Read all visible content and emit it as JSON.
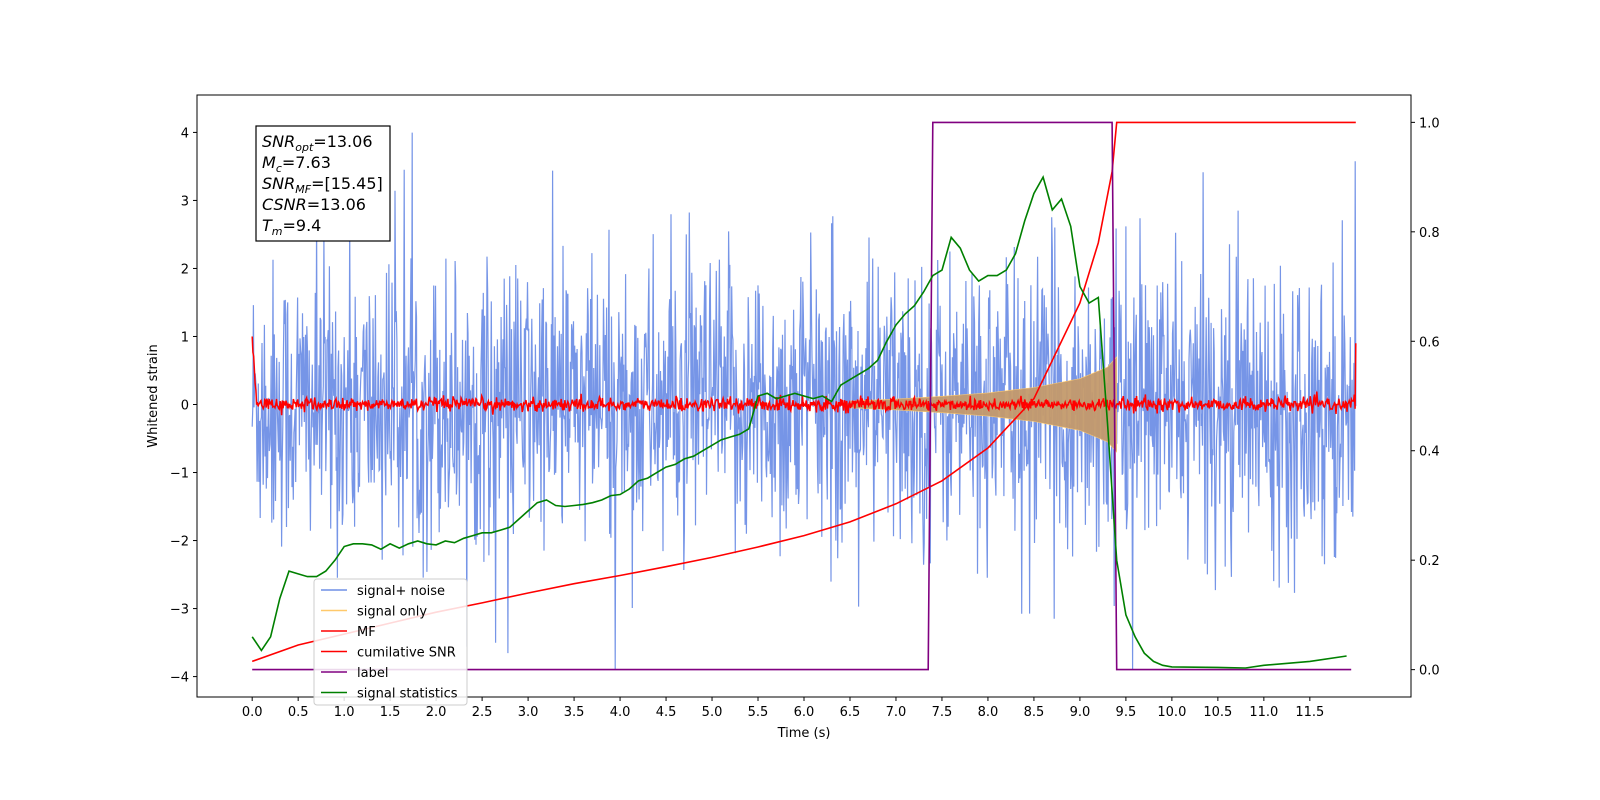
{
  "chart_data": {
    "type": "line",
    "title": "",
    "xlabel": "Time (s)",
    "ylabel": "Whitened strain",
    "xlim": [
      -0.6,
      12.6
    ],
    "ylim": [
      -4.3,
      4.55
    ],
    "ylim_right": [
      -0.05,
      1.05
    ],
    "grid": false,
    "legend_position": "lower-left",
    "x_ticks": [
      "0.0",
      "0.5",
      "1.0",
      "1.5",
      "2.0",
      "2.5",
      "3.0",
      "3.5",
      "4.0",
      "4.5",
      "5.0",
      "5.5",
      "6.0",
      "6.5",
      "7.0",
      "7.5",
      "8.0",
      "8.5",
      "9.0",
      "9.5",
      "10.0",
      "10.5",
      "11.0",
      "11.5"
    ],
    "y_ticks": [
      "4",
      "3",
      "2",
      "1",
      "0",
      "−1",
      "−2",
      "−3",
      "−4"
    ],
    "y_ticks_right": [
      "1.0",
      "0.8",
      "0.6",
      "0.4",
      "0.2",
      "0.0"
    ],
    "annotation": [
      {
        "base": "SNR",
        "sub": "opt",
        "value": "=13.06"
      },
      {
        "base": "M",
        "sub": "c",
        "value": "=7.63"
      },
      {
        "base": "SNR",
        "sub": "MF",
        "value": "=[15.45]"
      },
      {
        "base": "CSNR",
        "sub": "",
        "value": "=13.06"
      },
      {
        "base": "T",
        "sub": "m",
        "value": "=9.4"
      }
    ],
    "series": [
      {
        "name": "signal+ noise",
        "color": "#6f8fe6",
        "axis": "left",
        "noise_amplitude": 1.6,
        "x_range": [
          0.0,
          12.0
        ]
      },
      {
        "name": "signal only",
        "color": "#ffc96b",
        "axis": "left",
        "envelope_x": [
          6.5,
          7.0,
          7.5,
          8.0,
          8.5,
          9.0,
          9.3,
          9.4
        ],
        "envelope_amplitude": [
          0.05,
          0.08,
          0.12,
          0.17,
          0.25,
          0.38,
          0.55,
          0.7
        ]
      },
      {
        "name": "MF",
        "color": "#ff0000",
        "axis": "left",
        "start_value": 1.0,
        "x_range": [
          0.0,
          12.0
        ]
      },
      {
        "name": "cumilative SNR",
        "color": "#ff0000",
        "axis": "right",
        "x": [
          0.0,
          0.5,
          1.0,
          1.5,
          2.0,
          2.5,
          3.0,
          3.5,
          4.0,
          4.5,
          5.0,
          5.5,
          6.0,
          6.5,
          7.0,
          7.5,
          8.0,
          8.5,
          9.0,
          9.2,
          9.35,
          9.4,
          9.5,
          12.0
        ],
        "y": [
          0.015,
          0.045,
          0.065,
          0.085,
          0.105,
          0.122,
          0.14,
          0.157,
          0.172,
          0.188,
          0.205,
          0.224,
          0.245,
          0.27,
          0.303,
          0.345,
          0.405,
          0.495,
          0.67,
          0.78,
          0.91,
          1.0,
          1.0,
          1.0
        ]
      },
      {
        "name": "label",
        "color": "#800080",
        "axis": "right",
        "x": [
          0.0,
          7.35,
          7.4,
          9.35,
          9.4,
          11.95
        ],
        "y": [
          0.0,
          0.0,
          1.0,
          1.0,
          0.0,
          0.0
        ]
      },
      {
        "name": "signal statistics",
        "color": "#008000",
        "axis": "right",
        "x": [
          0.0,
          0.1,
          0.2,
          0.3,
          0.4,
          0.5,
          0.6,
          0.7,
          0.8,
          0.9,
          1.0,
          1.1,
          1.2,
          1.3,
          1.4,
          1.5,
          1.6,
          1.7,
          1.8,
          1.9,
          2.0,
          2.1,
          2.2,
          2.3,
          2.4,
          2.5,
          2.6,
          2.7,
          2.8,
          2.9,
          3.0,
          3.1,
          3.2,
          3.3,
          3.4,
          3.5,
          3.6,
          3.7,
          3.8,
          3.9,
          4.0,
          4.1,
          4.2,
          4.3,
          4.4,
          4.5,
          4.6,
          4.7,
          4.8,
          4.9,
          5.0,
          5.1,
          5.2,
          5.3,
          5.4,
          5.5,
          5.6,
          5.7,
          5.8,
          5.9,
          6.0,
          6.1,
          6.2,
          6.3,
          6.4,
          6.5,
          6.6,
          6.7,
          6.8,
          6.9,
          7.0,
          7.1,
          7.2,
          7.3,
          7.4,
          7.5,
          7.6,
          7.7,
          7.8,
          7.9,
          8.0,
          8.1,
          8.2,
          8.3,
          8.4,
          8.5,
          8.6,
          8.7,
          8.8,
          8.9,
          9.0,
          9.1,
          9.2,
          9.3,
          9.4,
          9.5,
          9.6,
          9.7,
          9.8,
          9.9,
          10.0,
          10.5,
          10.8,
          11.0,
          11.5,
          11.9
        ],
        "y": [
          0.06,
          0.035,
          0.06,
          0.13,
          0.18,
          0.175,
          0.17,
          0.17,
          0.18,
          0.2,
          0.225,
          0.23,
          0.23,
          0.228,
          0.22,
          0.23,
          0.222,
          0.23,
          0.235,
          0.23,
          0.228,
          0.235,
          0.232,
          0.24,
          0.245,
          0.25,
          0.25,
          0.255,
          0.26,
          0.275,
          0.29,
          0.305,
          0.31,
          0.3,
          0.298,
          0.3,
          0.302,
          0.305,
          0.31,
          0.318,
          0.32,
          0.33,
          0.345,
          0.35,
          0.36,
          0.37,
          0.375,
          0.385,
          0.39,
          0.4,
          0.41,
          0.42,
          0.425,
          0.43,
          0.44,
          0.5,
          0.505,
          0.495,
          0.5,
          0.505,
          0.5,
          0.495,
          0.5,
          0.49,
          0.52,
          0.53,
          0.54,
          0.55,
          0.565,
          0.6,
          0.63,
          0.65,
          0.665,
          0.69,
          0.72,
          0.73,
          0.79,
          0.77,
          0.73,
          0.71,
          0.72,
          0.72,
          0.73,
          0.76,
          0.82,
          0.87,
          0.9,
          0.84,
          0.86,
          0.81,
          0.7,
          0.67,
          0.68,
          0.45,
          0.2,
          0.1,
          0.06,
          0.03,
          0.015,
          0.008,
          0.005,
          0.004,
          0.003,
          0.008,
          0.015,
          0.025
        ]
      }
    ]
  }
}
